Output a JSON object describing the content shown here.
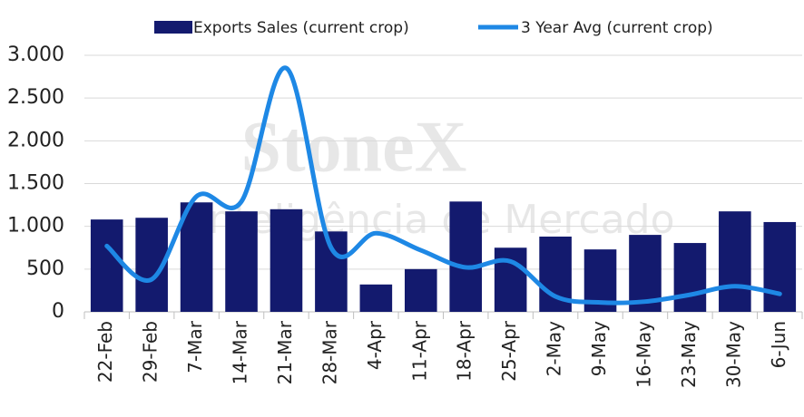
{
  "chart_data": {
    "type": "bar_line",
    "watermark": [
      "StoneX",
      "Inteligência de Mercado"
    ],
    "categories": [
      "22-Feb",
      "29-Feb",
      "7-Mar",
      "14-Mar",
      "21-Mar",
      "28-Mar",
      "4-Apr",
      "11-Apr",
      "18-Apr",
      "25-Apr",
      "2-May",
      "9-May",
      "16-May",
      "23-May",
      "30-May",
      "6-Jun"
    ],
    "series": [
      {
        "name": "Exports Sales (current crop)",
        "type": "bar",
        "color": "#131a6e",
        "values": [
          1080,
          1100,
          1280,
          1175,
          1200,
          940,
          320,
          500,
          1290,
          750,
          880,
          730,
          900,
          805,
          1175,
          1050
        ]
      },
      {
        "name": "3 Year Avg (current crop)",
        "type": "line",
        "color": "#1e88e5",
        "smooth": true,
        "values": [
          770,
          380,
          1350,
          1290,
          2850,
          750,
          920,
          720,
          520,
          590,
          180,
          110,
          120,
          200,
          300,
          210
        ]
      }
    ],
    "ylim": [
      0,
      3000
    ],
    "yticks": [
      0,
      500,
      {
        "value": 1000,
        "label": "1.000"
      },
      {
        "value": 1500,
        "label": "1.500"
      },
      {
        "value": 2000,
        "label": "2.000"
      },
      {
        "value": 2500,
        "label": "2.500"
      },
      {
        "value": 3000,
        "label": "3.000"
      }
    ],
    "grid": true
  }
}
